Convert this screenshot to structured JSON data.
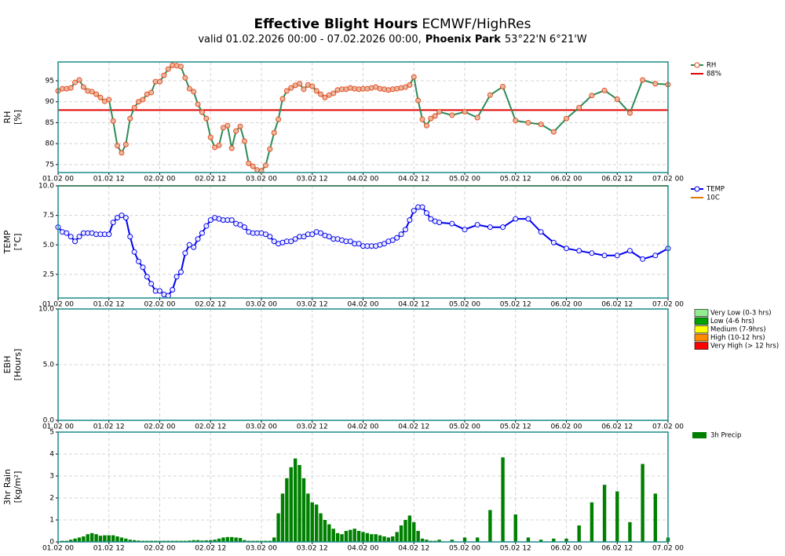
{
  "header": {
    "title_bold": "Effective Blight Hours",
    "title_rest": "ECMWF/HighRes",
    "valid": "valid 01.02.2026 00:00 - 07.02.2026 00:00,",
    "location": "Phoenix Park",
    "coords": "53°22'N 6°21'W"
  },
  "chart_data": [
    {
      "type": "line",
      "ylabel": [
        "RH",
        "[%]"
      ],
      "xlim": [
        0,
        144
      ],
      "ylim": [
        73.1,
        99.5
      ],
      "yticks": [
        75,
        80,
        85,
        90,
        95
      ],
      "grid": true,
      "xticks": [
        {
          "value": 0,
          "label": "01.02 00"
        },
        {
          "value": 12,
          "label": "01.02 12"
        },
        {
          "value": 24,
          "label": "02.02 00"
        },
        {
          "value": 36,
          "label": "02.02 12"
        },
        {
          "value": 48,
          "label": "03.02 00"
        },
        {
          "value": 60,
          "label": "03.02 12"
        },
        {
          "value": 72,
          "label": "04.02 00"
        },
        {
          "value": 84,
          "label": "04.02 12"
        },
        {
          "value": 96,
          "label": "05.02 00"
        },
        {
          "value": 108,
          "label": "05.02 12"
        },
        {
          "value": 120,
          "label": "06.02 00"
        },
        {
          "value": 132,
          "label": "06.02 12"
        },
        {
          "value": 144,
          "label": "07.02 00"
        }
      ],
      "x": [
        0,
        1,
        2,
        3,
        4,
        5,
        6,
        7,
        8,
        9,
        10,
        11,
        12,
        13,
        14,
        15,
        16,
        17,
        18,
        19,
        20,
        21,
        22,
        23,
        24,
        25,
        26,
        27,
        28,
        29,
        30,
        31,
        32,
        33,
        34,
        35,
        36,
        37,
        38,
        39,
        40,
        41,
        42,
        43,
        44,
        45,
        46,
        47,
        48,
        49,
        50,
        51,
        52,
        53,
        54,
        55,
        56,
        57,
        58,
        59,
        60,
        61,
        62,
        63,
        64,
        65,
        66,
        67,
        68,
        69,
        70,
        71,
        72,
        73,
        74,
        75,
        76,
        77,
        78,
        79,
        80,
        81,
        82,
        83,
        84,
        85,
        86,
        87,
        88,
        89,
        90,
        93,
        96,
        99,
        102,
        105,
        108,
        111,
        114,
        117,
        120,
        123,
        126,
        129,
        132,
        135,
        138,
        141,
        144
      ],
      "series": [
        {
          "name": "RH",
          "color": "#2e8b57",
          "marker_color": "#e04a1c",
          "values": [
            92.6,
            93.1,
            93.1,
            93.3,
            94.6,
            95.2,
            93.5,
            92.6,
            92.4,
            91.8,
            91,
            90.1,
            90.5,
            85.4,
            79.5,
            77.8,
            79.8,
            86,
            88.6,
            90,
            90.5,
            91.8,
            92.2,
            94.8,
            94.8,
            96.3,
            97.8,
            98.7,
            98.6,
            98.4,
            95.7,
            93.1,
            92.4,
            89.4,
            87.5,
            86,
            81.5,
            79.1,
            79.6,
            83.8,
            84.3,
            78.9,
            83,
            84.1,
            80.6,
            75.3,
            74.6,
            73.7,
            73.5,
            74.8,
            78.7,
            82.6,
            85.8,
            90.7,
            92.6,
            93.3,
            93.9,
            94.3,
            93,
            94,
            93.7,
            92.6,
            91.8,
            91,
            91.6,
            92,
            92.8,
            93,
            93,
            93.3,
            93.1,
            93,
            93.1,
            93.1,
            93.3,
            93.5,
            93.1,
            93,
            92.8,
            93,
            93.1,
            93.3,
            93.5,
            94,
            95.9,
            90.3,
            85.8,
            84.3,
            86,
            86.6,
            87.6,
            86.8,
            87.6,
            86.2,
            91.6,
            93.6,
            85.5,
            85,
            84.6,
            82.8,
            86,
            88.6,
            91.5,
            92.7,
            90.6,
            87.3,
            95.2,
            94.3,
            94.1
          ]
        }
      ],
      "ref_lines": [
        {
          "name": "88%",
          "value": 88,
          "color": "#e00000"
        }
      ]
    },
    {
      "type": "line",
      "ylabel": [
        "TEMP",
        "[°C]"
      ],
      "xlim": [
        0,
        144
      ],
      "ylim": [
        0.5,
        10
      ],
      "yticks": [
        2.5,
        {
          "value": 5,
          "label": "5.0"
        },
        7.5,
        {
          "value": 10,
          "label": "10.0"
        }
      ],
      "grid": true,
      "xticks": [
        {
          "value": 0,
          "label": "01.02 00"
        },
        {
          "value": 12,
          "label": "01.02 12"
        },
        {
          "value": 24,
          "label": "02.02 00"
        },
        {
          "value": 36,
          "label": "02.02 12"
        },
        {
          "value": 48,
          "label": "03.02 00"
        },
        {
          "value": 60,
          "label": "03.02 12"
        },
        {
          "value": 72,
          "label": "04.02 00"
        },
        {
          "value": 84,
          "label": "04.02 12"
        },
        {
          "value": 96,
          "label": "05.02 00"
        },
        {
          "value": 108,
          "label": "05.02 12"
        },
        {
          "value": 120,
          "label": "06.02 00"
        },
        {
          "value": 132,
          "label": "06.02 12"
        },
        {
          "value": 144,
          "label": "07.02 00"
        }
      ],
      "x": [
        0,
        1,
        2,
        3,
        4,
        5,
        6,
        7,
        8,
        9,
        10,
        11,
        12,
        13,
        14,
        15,
        16,
        17,
        18,
        19,
        20,
        21,
        22,
        23,
        24,
        25,
        26,
        27,
        28,
        29,
        30,
        31,
        32,
        33,
        34,
        35,
        36,
        37,
        38,
        39,
        40,
        41,
        42,
        43,
        44,
        45,
        46,
        47,
        48,
        49,
        50,
        51,
        52,
        53,
        54,
        55,
        56,
        57,
        58,
        59,
        60,
        61,
        62,
        63,
        64,
        65,
        66,
        67,
        68,
        69,
        70,
        71,
        72,
        73,
        74,
        75,
        76,
        77,
        78,
        79,
        80,
        81,
        82,
        83,
        84,
        85,
        86,
        87,
        88,
        89,
        90,
        93,
        96,
        99,
        102,
        105,
        108,
        111,
        114,
        117,
        120,
        123,
        126,
        129,
        132,
        135,
        138,
        141,
        144
      ],
      "series": [
        {
          "name": "TEMP",
          "color": "#0000ee",
          "marker_color": "#0000ee",
          "values": [
            6.5,
            6.1,
            6,
            5.7,
            5.3,
            5.7,
            6,
            6,
            6,
            5.9,
            5.9,
            5.9,
            5.9,
            6.9,
            7.3,
            7.5,
            7.3,
            5.7,
            4.4,
            3.6,
            3.1,
            2.3,
            1.7,
            1.1,
            1.1,
            0.8,
            0.7,
            1.2,
            2.3,
            2.7,
            4.3,
            5,
            4.8,
            5.5,
            6,
            6.6,
            7.1,
            7.3,
            7.2,
            7.1,
            7.1,
            7.1,
            6.8,
            6.7,
            6.5,
            6.1,
            6,
            6,
            6,
            5.9,
            5.7,
            5.3,
            5.1,
            5.2,
            5.3,
            5.3,
            5.5,
            5.7,
            5.7,
            5.9,
            5.9,
            6.1,
            6,
            5.8,
            5.7,
            5.5,
            5.5,
            5.4,
            5.3,
            5.3,
            5.1,
            5.1,
            4.9,
            4.9,
            4.9,
            4.9,
            5,
            5.1,
            5.3,
            5.4,
            5.6,
            5.9,
            6.3,
            7.1,
            7.9,
            8.2,
            8.2,
            7.7,
            7.2,
            7,
            6.9,
            6.8,
            6.3,
            6.7,
            6.5,
            6.5,
            7.2,
            7.2,
            6.1,
            5.2,
            4.7,
            4.5,
            4.3,
            4.1,
            4.1,
            4.5,
            3.8,
            4.1,
            4.7
          ]
        }
      ],
      "ref_lines": [
        {
          "name": "10C",
          "value": 10,
          "color": "#e07800"
        }
      ]
    },
    {
      "type": "bar",
      "ylabel": [
        "EBH",
        "[Hours]"
      ],
      "xlim": [
        0,
        144
      ],
      "ylim": [
        0,
        10
      ],
      "yticks": [
        {
          "value": 0,
          "label": "0.0"
        },
        {
          "value": 5,
          "label": "5.0"
        },
        {
          "value": 10,
          "label": "10.0"
        }
      ],
      "grid": true,
      "xticks": [
        {
          "value": 0,
          "label": "01.02 00"
        },
        {
          "value": 12,
          "label": "01.02 12"
        },
        {
          "value": 24,
          "label": "02.02 00"
        },
        {
          "value": 36,
          "label": "02.02 12"
        },
        {
          "value": 48,
          "label": "03.02 00"
        },
        {
          "value": 60,
          "label": "03.02 12"
        },
        {
          "value": 72,
          "label": "04.02 00"
        },
        {
          "value": 84,
          "label": "04.02 12"
        },
        {
          "value": 96,
          "label": "05.02 00"
        },
        {
          "value": 108,
          "label": "05.02 12"
        },
        {
          "value": 120,
          "label": "06.02 00"
        },
        {
          "value": 132,
          "label": "06.02 12"
        },
        {
          "value": 144,
          "label": "07.02 00"
        }
      ],
      "legend_items": [
        {
          "name": "Very Low (0-3 hrs)",
          "color": "#90ee90"
        },
        {
          "name": "Low (4-6 hrs)",
          "color": "#00a000"
        },
        {
          "name": "Medium (7-9hrs)",
          "color": "#ffff00"
        },
        {
          "name": "High (10-12 hrs)",
          "color": "#ff8c00"
        },
        {
          "name": "Very High (> 12 hrs)",
          "color": "#ff0000"
        }
      ]
    },
    {
      "type": "bar",
      "ylabel": [
        "3hr Rain",
        "[kg/m²]"
      ],
      "xlim": [
        0,
        144
      ],
      "ylim": [
        0,
        5
      ],
      "yticks": [
        0,
        1,
        2,
        3,
        4,
        5
      ],
      "grid": true,
      "xticks": [
        {
          "value": 0,
          "label": "01.02 00"
        },
        {
          "value": 12,
          "label": "01.02 12"
        },
        {
          "value": 24,
          "label": "02.02 00"
        },
        {
          "value": 36,
          "label": "02.02 12"
        },
        {
          "value": 48,
          "label": "03.02 00"
        },
        {
          "value": 60,
          "label": "03.02 12"
        },
        {
          "value": 72,
          "label": "04.02 00"
        },
        {
          "value": 84,
          "label": "04.02 12"
        },
        {
          "value": 96,
          "label": "05.02 00"
        },
        {
          "value": 108,
          "label": "05.02 12"
        },
        {
          "value": 120,
          "label": "06.02 00"
        },
        {
          "value": 132,
          "label": "06.02 12"
        },
        {
          "value": 144,
          "label": "07.02 00"
        }
      ],
      "x": [
        0,
        1,
        2,
        3,
        4,
        5,
        6,
        7,
        8,
        9,
        10,
        11,
        12,
        13,
        14,
        15,
        16,
        17,
        18,
        19,
        20,
        21,
        22,
        23,
        24,
        25,
        26,
        27,
        28,
        29,
        30,
        31,
        32,
        33,
        34,
        35,
        36,
        37,
        38,
        39,
        40,
        41,
        42,
        43,
        44,
        45,
        46,
        47,
        48,
        49,
        50,
        51,
        52,
        53,
        54,
        55,
        56,
        57,
        58,
        59,
        60,
        61,
        62,
        63,
        64,
        65,
        66,
        67,
        68,
        69,
        70,
        71,
        72,
        73,
        74,
        75,
        76,
        77,
        78,
        79,
        80,
        81,
        82,
        83,
        84,
        85,
        86,
        87,
        88,
        89,
        90,
        93,
        96,
        99,
        102,
        105,
        108,
        111,
        114,
        117,
        120,
        123,
        126,
        129,
        132,
        135,
        138,
        141,
        144
      ],
      "series": [
        {
          "name": "3h Precip",
          "color": "#008000",
          "values": [
            0,
            0.05,
            0.05,
            0.1,
            0.15,
            0.2,
            0.25,
            0.35,
            0.4,
            0.35,
            0.28,
            0.3,
            0.3,
            0.3,
            0.25,
            0.2,
            0.15,
            0.1,
            0.08,
            0.06,
            0.05,
            0.05,
            0.05,
            0.05,
            0.05,
            0.05,
            0.05,
            0.05,
            0.05,
            0.05,
            0.05,
            0.06,
            0.08,
            0.08,
            0.06,
            0.07,
            0.08,
            0.1,
            0.15,
            0.2,
            0.22,
            0.22,
            0.2,
            0.18,
            0.08,
            0.05,
            0.05,
            0.05,
            0.05,
            0.05,
            0.05,
            0.2,
            1.3,
            2.2,
            2.9,
            3.4,
            3.8,
            3.5,
            2.9,
            2.2,
            1.8,
            1.7,
            1.3,
            1,
            0.8,
            0.6,
            0.4,
            0.35,
            0.5,
            0.55,
            0.6,
            0.5,
            0.45,
            0.4,
            0.35,
            0.35,
            0.3,
            0.25,
            0.2,
            0.25,
            0.45,
            0.75,
            1,
            1.2,
            0.9,
            0.5,
            0.15,
            0.1,
            0.05,
            0.05,
            0.1,
            0.1,
            0.2,
            0.2,
            1.45,
            3.85,
            1.25,
            0.2,
            0.1,
            0.15,
            0.15,
            0.75,
            1.8,
            2.6,
            2.3,
            0.9,
            3.55,
            2.2,
            0.2
          ]
        }
      ]
    }
  ]
}
